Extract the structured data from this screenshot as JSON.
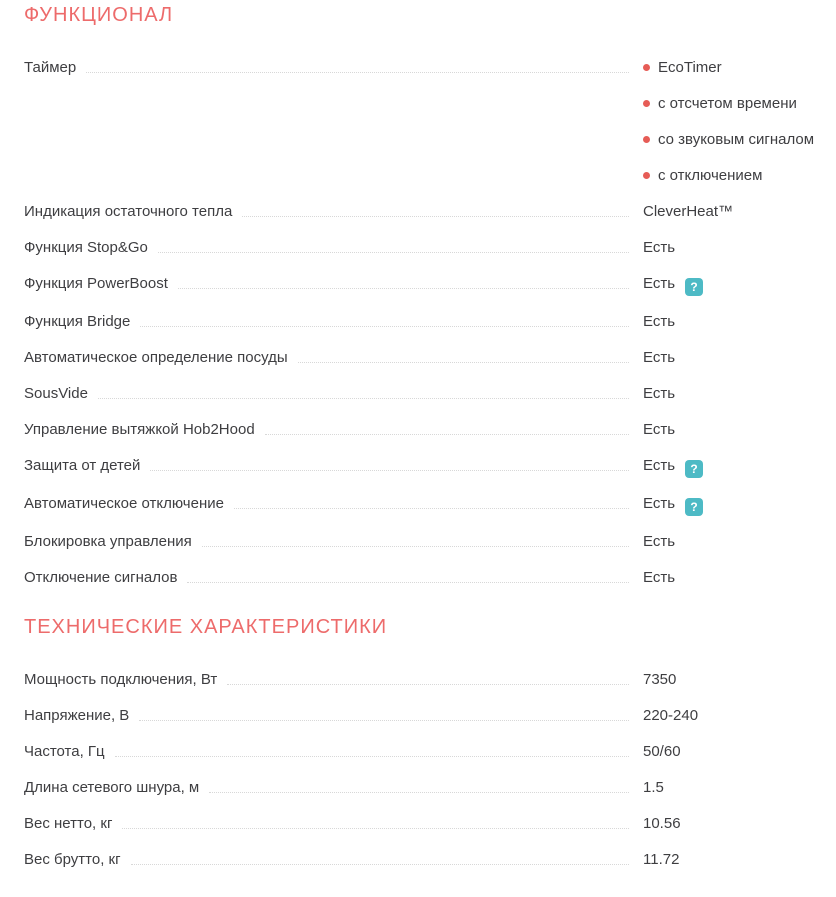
{
  "colors": {
    "accent": "#ed6b6b",
    "bullet": "#e65c56",
    "help": "#4dbac5",
    "text": "#3e3e41",
    "leader": "#d8d8d8"
  },
  "icons": {
    "help_glyph": "?"
  },
  "sections": [
    {
      "title": "ФУНКЦИОНАЛ",
      "rows": [
        {
          "label": "Таймер",
          "bullets": [
            "EcoTimer",
            "с отсчетом времени",
            "со звуковым сигналом",
            "с отключением"
          ]
        },
        {
          "label": "Индикация остаточного тепла",
          "value": "CleverHeat™"
        },
        {
          "label": "Функция Stop&Go",
          "value": "Есть"
        },
        {
          "label": "Функция PowerBoost",
          "value": "Есть",
          "help": true
        },
        {
          "label": "Функция Bridge",
          "value": "Есть"
        },
        {
          "label": "Автоматическое определение посуды",
          "value": "Есть"
        },
        {
          "label": "SousVide",
          "value": "Есть"
        },
        {
          "label": "Управление вытяжкой Hob2Hood",
          "value": "Есть"
        },
        {
          "label": "Защита от детей",
          "value": "Есть",
          "help": true
        },
        {
          "label": "Автоматическое отключение",
          "value": "Есть",
          "help": true
        },
        {
          "label": "Блокировка управления",
          "value": "Есть"
        },
        {
          "label": "Отключение сигналов",
          "value": "Есть"
        }
      ]
    },
    {
      "title": "ТЕХНИЧЕСКИЕ ХАРАКТЕРИСТИКИ",
      "rows": [
        {
          "label": "Мощность подключения, Вт",
          "value": "7350"
        },
        {
          "label": "Напряжение, В",
          "value": "220-240"
        },
        {
          "label": "Частота, Гц",
          "value": "50/60"
        },
        {
          "label": "Длина сетевого шнура, м",
          "value": "1.5"
        },
        {
          "label": "Вес нетто, кг",
          "value": "10.56"
        },
        {
          "label": "Вес брутто, кг",
          "value": "11.72"
        }
      ]
    }
  ]
}
